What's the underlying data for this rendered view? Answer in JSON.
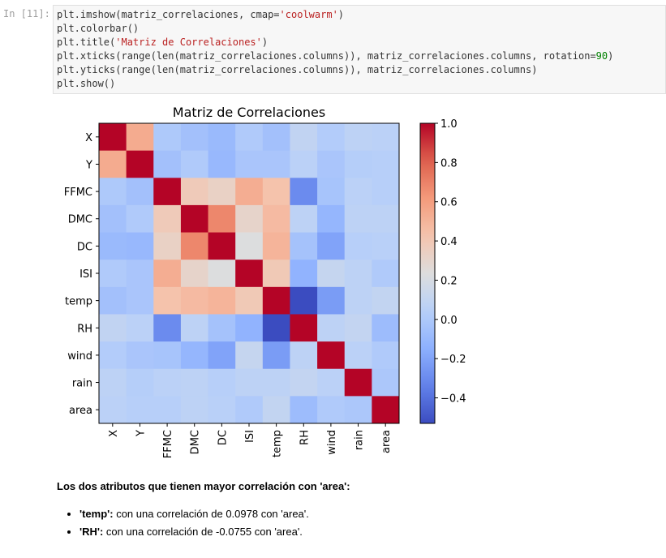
{
  "cell": {
    "prompt": "In [11]:",
    "code_lines": [
      [
        {
          "t": "plt.imshow(matriz_correlaciones, cmap="
        },
        {
          "t": "'coolwarm'",
          "c": "str"
        },
        {
          "t": ")"
        }
      ],
      [
        {
          "t": "plt.colorbar()"
        }
      ],
      [
        {
          "t": "plt.title("
        },
        {
          "t": "'Matriz de Correlaciones'",
          "c": "str"
        },
        {
          "t": ")"
        }
      ],
      [
        {
          "t": "plt.xticks(range(len(matriz_correlaciones.columns)), matriz_correlaciones.columns, rotation="
        },
        {
          "t": "90",
          "c": "num"
        },
        {
          "t": ")"
        }
      ],
      [
        {
          "t": "plt.yticks(range(len(matriz_correlaciones.columns)), matriz_correlaciones.columns)"
        }
      ],
      [
        {
          "t": "plt.show()"
        }
      ]
    ]
  },
  "chart_data": {
    "type": "heatmap",
    "title": "Matriz de Correlaciones",
    "labels": [
      "X",
      "Y",
      "FFMC",
      "DMC",
      "DC",
      "ISI",
      "temp",
      "RH",
      "wind",
      "rain",
      "area"
    ],
    "cmap": "coolwarm",
    "vmin": -0.53,
    "vmax": 1.0,
    "colorbar_ticks": [
      "1.0",
      "0.8",
      "0.6",
      "0.4",
      "0.2",
      "0.0",
      "−0.2",
      "−0.4"
    ],
    "colorbar_values": [
      1.0,
      0.8,
      0.6,
      0.4,
      0.2,
      0.0,
      -0.2,
      -0.4
    ],
    "matrix": [
      [
        1.0,
        0.54,
        0.0,
        -0.05,
        -0.09,
        0.01,
        -0.05,
        0.09,
        0.02,
        0.07,
        0.06
      ],
      [
        0.54,
        1.0,
        -0.05,
        0.01,
        -0.1,
        -0.02,
        -0.02,
        0.06,
        -0.02,
        0.03,
        0.04
      ],
      [
        0.0,
        -0.05,
        1.0,
        0.38,
        0.33,
        0.53,
        0.43,
        -0.3,
        -0.03,
        0.06,
        0.04
      ],
      [
        -0.05,
        0.01,
        0.38,
        1.0,
        0.68,
        0.31,
        0.47,
        0.07,
        -0.11,
        0.07,
        0.07
      ],
      [
        -0.09,
        -0.1,
        0.33,
        0.68,
        1.0,
        0.23,
        0.5,
        -0.04,
        -0.2,
        0.04,
        0.05
      ],
      [
        0.01,
        -0.02,
        0.53,
        0.31,
        0.23,
        1.0,
        0.39,
        -0.13,
        0.11,
        0.07,
        0.01
      ],
      [
        -0.05,
        -0.02,
        0.43,
        0.47,
        0.5,
        0.39,
        1.0,
        -0.53,
        -0.23,
        0.07,
        0.0978
      ],
      [
        0.09,
        0.06,
        -0.3,
        0.07,
        -0.04,
        -0.13,
        -0.53,
        1.0,
        0.07,
        0.1,
        -0.0755
      ],
      [
        0.02,
        -0.02,
        -0.03,
        -0.11,
        -0.2,
        0.11,
        -0.23,
        0.07,
        1.0,
        0.06,
        0.01
      ],
      [
        0.07,
        0.03,
        0.06,
        0.07,
        0.04,
        0.07,
        0.07,
        0.1,
        0.06,
        1.0,
        -0.01
      ],
      [
        0.06,
        0.04,
        0.04,
        0.07,
        0.05,
        0.01,
        0.0978,
        -0.0755,
        0.01,
        -0.01,
        1.0
      ]
    ]
  },
  "markdown": {
    "heading": "Los dos atributos que tienen mayor correlación con 'area':",
    "items": [
      {
        "bold": "'temp':",
        "text": " con una correlación de 0.0978 con 'area'."
      },
      {
        "bold": "'RH':",
        "text": " con una correlación de -0.0755 con 'area'."
      }
    ]
  }
}
